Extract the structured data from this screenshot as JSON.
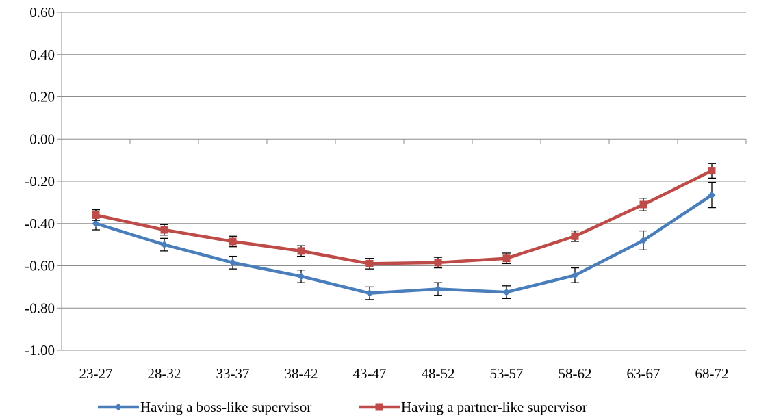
{
  "chart_data": {
    "type": "line",
    "title": "",
    "xlabel": "",
    "ylabel": "",
    "categories": [
      "23-27",
      "28-32",
      "33-37",
      "38-42",
      "43-47",
      "48-52",
      "53-57",
      "58-62",
      "63-67",
      "68-72"
    ],
    "ylim": [
      -1.0,
      0.6
    ],
    "yticks": [
      "0.60",
      "0.40",
      "0.20",
      "0.00",
      "-0.20",
      "-0.40",
      "-0.60",
      "-0.80",
      "-1.00"
    ],
    "ytick_values": [
      0.6,
      0.4,
      0.2,
      0.0,
      -0.2,
      -0.4,
      -0.6,
      -0.8,
      -1.0
    ],
    "grid": true,
    "legend_position": "bottom",
    "series": [
      {
        "name": "Having a boss-like supervisor",
        "color": "#4a7ebb",
        "marker": "diamond",
        "values": [
          -0.4,
          -0.5,
          -0.585,
          -0.65,
          -0.73,
          -0.71,
          -0.725,
          -0.645,
          -0.48,
          -0.265
        ],
        "error": [
          0.03,
          0.03,
          0.03,
          0.03,
          0.03,
          0.03,
          0.03,
          0.035,
          0.045,
          0.06
        ]
      },
      {
        "name": "Having a partner-like supervisor",
        "color": "#be4b48",
        "marker": "square",
        "values": [
          -0.36,
          -0.43,
          -0.485,
          -0.53,
          -0.59,
          -0.585,
          -0.565,
          -0.46,
          -0.31,
          -0.15
        ],
        "error": [
          0.025,
          0.025,
          0.025,
          0.025,
          0.025,
          0.025,
          0.025,
          0.025,
          0.03,
          0.035
        ]
      }
    ]
  }
}
